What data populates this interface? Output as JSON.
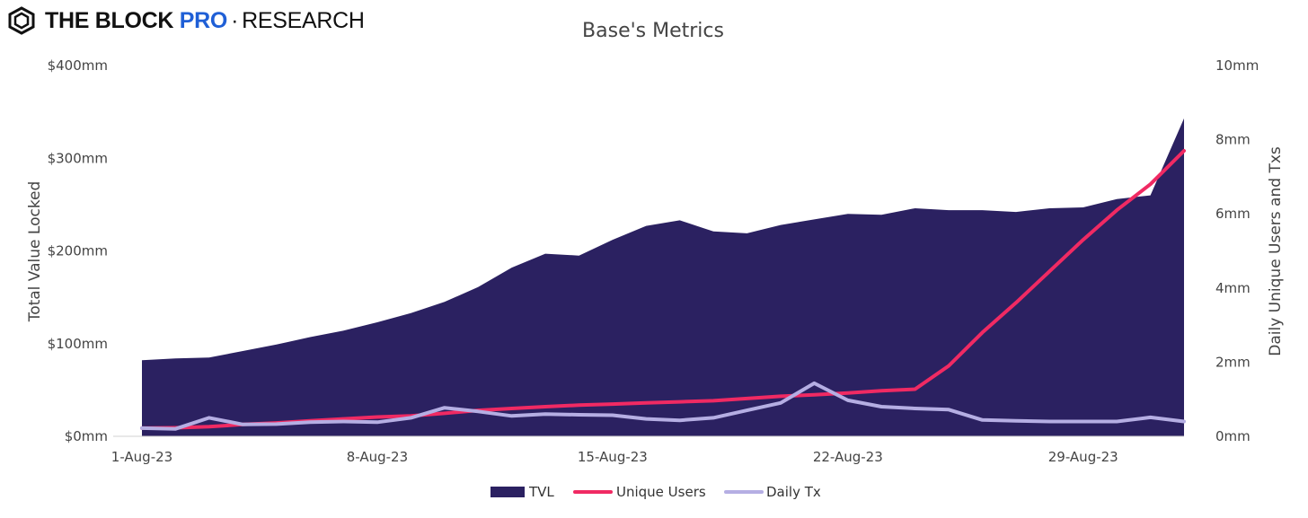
{
  "brand": {
    "part1": "THE BLOCK",
    "part2": "PRO",
    "separator": "·",
    "part3": "RESEARCH"
  },
  "colors": {
    "tvl": "#2b2161",
    "unique_users": "#f02a63",
    "daily_tx": "#b5aee3",
    "brand_pro": "#1f5fd6"
  },
  "chart_data": {
    "type": "area",
    "title": "Base's Metrics",
    "ylabel": "Total Value Locked",
    "y2label": "Daily Unique Users and Txs",
    "ylim": [
      0,
      400
    ],
    "y2lim": [
      0,
      10
    ],
    "yticks": [
      "$0mm",
      "$100mm",
      "$200mm",
      "$300mm",
      "$400mm"
    ],
    "y2ticks": [
      "0mm",
      "2mm",
      "4mm",
      "6mm",
      "8mm",
      "10mm"
    ],
    "xticks": [
      {
        "label": "1-Aug-23",
        "day": 1
      },
      {
        "label": "8-Aug-23",
        "day": 8
      },
      {
        "label": "15-Aug-23",
        "day": 15
      },
      {
        "label": "22-Aug-23",
        "day": 22
      },
      {
        "label": "29-Aug-23",
        "day": 29
      }
    ],
    "x_days": [
      1,
      2,
      3,
      4,
      5,
      6,
      7,
      8,
      9,
      10,
      11,
      12,
      13,
      14,
      15,
      16,
      17,
      18,
      19,
      20,
      21,
      22,
      23,
      24,
      25,
      26,
      27,
      28,
      29,
      30,
      31,
      32
    ],
    "legend_position": "bottom",
    "series": [
      {
        "name": "TVL",
        "axis": "left",
        "type": "area",
        "values": [
          82,
          84,
          85,
          92,
          99,
          107,
          114,
          123,
          133,
          145,
          161,
          182,
          197,
          195,
          212,
          227,
          233,
          221,
          219,
          228,
          234,
          240,
          239,
          246,
          244,
          244,
          242,
          246,
          247,
          256,
          260,
          343
        ]
      },
      {
        "name": "Unique Users",
        "axis": "right",
        "type": "line",
        "values": [
          0.22,
          0.23,
          0.26,
          0.32,
          0.36,
          0.42,
          0.47,
          0.52,
          0.55,
          0.62,
          0.7,
          0.75,
          0.8,
          0.84,
          0.87,
          0.9,
          0.93,
          0.96,
          1.02,
          1.08,
          1.12,
          1.17,
          1.23,
          1.27,
          1.9,
          2.8,
          3.6,
          4.45,
          5.3,
          6.1,
          6.8,
          7.7
        ]
      },
      {
        "name": "Daily Tx",
        "axis": "right",
        "type": "line",
        "values": [
          0.22,
          0.2,
          0.5,
          0.32,
          0.33,
          0.38,
          0.4,
          0.38,
          0.5,
          0.77,
          0.67,
          0.55,
          0.6,
          0.58,
          0.57,
          0.47,
          0.43,
          0.5,
          0.7,
          0.9,
          1.43,
          0.97,
          0.8,
          0.75,
          0.72,
          0.44,
          0.42,
          0.4,
          0.4,
          0.4,
          0.51,
          0.4
        ]
      }
    ]
  }
}
